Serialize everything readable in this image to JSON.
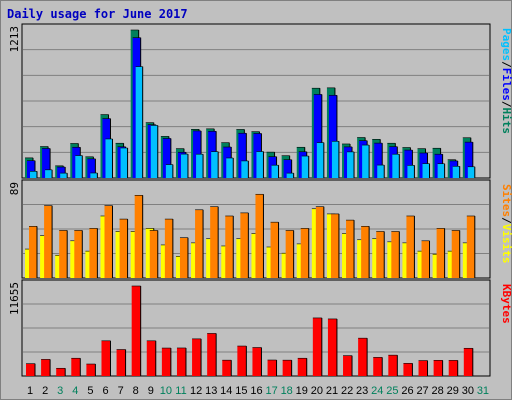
{
  "title": "Daily usage for June 2017",
  "colors": {
    "hits": "#00805c",
    "files": "#0000ff",
    "pages": "#00c0ff",
    "visits": "#ffff00",
    "sites": "#ff8000",
    "kbytes": "#ff0000",
    "weekend_day": "#00805c",
    "weekday": "#000000"
  },
  "chart_data": [
    {
      "type": "bar",
      "name": "hits-files-pages",
      "ylabel_parts": [
        {
          "text": "Pages",
          "color_key": "pages"
        },
        {
          "text": "/",
          "color_key": "weekday"
        },
        {
          "text": "Files",
          "color_key": "files"
        },
        {
          "text": "/",
          "color_key": "weekday"
        },
        {
          "text": "Hits",
          "color_key": "hits"
        }
      ],
      "ymax_label": "1213",
      "ylim": [
        0,
        1213
      ],
      "categories": [
        "1",
        "2",
        "3",
        "4",
        "5",
        "6",
        "7",
        "8",
        "9",
        "10",
        "11",
        "12",
        "13",
        "14",
        "15",
        "16",
        "17",
        "18",
        "19",
        "20",
        "21",
        "22",
        "23",
        "24",
        "25",
        "26",
        "27",
        "28",
        "29",
        "30",
        "31"
      ],
      "weekend_days": [
        "3",
        "4",
        "10",
        "11",
        "17",
        "18",
        "24",
        "25",
        "31"
      ],
      "series": [
        {
          "name": "Hits",
          "color_key": "hits",
          "values": [
            165,
            258,
            100,
            283,
            174,
            520,
            285,
            1213,
            454,
            341,
            241,
            399,
            403,
            290,
            398,
            380,
            212,
            183,
            252,
            736,
            739,
            279,
            332,
            317,
            285,
            250,
            241,
            244,
            150,
            330,
            0
          ]
        },
        {
          "name": "Files",
          "color_key": "files",
          "values": [
            142,
            242,
            90,
            252,
            157,
            487,
            256,
            1150,
            437,
            324,
            211,
            386,
            383,
            254,
            367,
            365,
            175,
            150,
            215,
            685,
            678,
            255,
            306,
            286,
            257,
            229,
            205,
            195,
            140,
            294,
            0
          ]
        },
        {
          "name": "Pages",
          "color_key": "pages",
          "values": [
            55,
            67,
            40,
            184,
            41,
            320,
            246,
            913,
            431,
            110,
            196,
            195,
            216,
            164,
            140,
            217,
            105,
            40,
            180,
            290,
            301,
            214,
            270,
            106,
            195,
            104,
            118,
            117,
            96,
            92,
            0
          ]
        }
      ]
    },
    {
      "type": "bar",
      "name": "visits-sites",
      "ylabel_parts": [
        {
          "text": "Sites",
          "color_key": "sites"
        },
        {
          "text": "/",
          "color_key": "weekday"
        },
        {
          "text": "Visits",
          "color_key": "visits"
        }
      ],
      "ymax_label": "89",
      "ylim": [
        0,
        89
      ],
      "categories": [
        "1",
        "2",
        "3",
        "4",
        "5",
        "6",
        "7",
        "8",
        "9",
        "10",
        "11",
        "12",
        "13",
        "14",
        "15",
        "16",
        "17",
        "18",
        "19",
        "20",
        "21",
        "22",
        "23",
        "24",
        "25",
        "26",
        "27",
        "28",
        "29",
        "30",
        "31"
      ],
      "series": [
        {
          "name": "Visits",
          "color_key": "visits",
          "values": [
            28,
            41,
            22,
            36,
            26,
            60,
            45,
            45,
            48,
            32,
            21,
            34,
            38,
            31,
            38,
            43,
            30,
            24,
            33,
            67,
            62,
            43,
            37,
            38,
            35,
            34,
            26,
            23,
            26,
            34,
            0
          ]
        },
        {
          "name": "Sites",
          "color_key": "sites",
          "values": [
            50,
            70,
            46,
            46,
            48,
            70,
            57,
            80,
            46,
            57,
            39,
            66,
            69,
            60,
            63,
            81,
            54,
            46,
            48,
            69,
            62,
            56,
            50,
            45,
            45,
            60,
            36,
            48,
            46,
            60,
            0
          ]
        }
      ]
    },
    {
      "type": "bar",
      "name": "kbytes",
      "ylabel_parts": [
        {
          "text": "KBytes",
          "color_key": "kbytes"
        }
      ],
      "ymax_label": "11655",
      "ylim": [
        0,
        11655
      ],
      "categories": [
        "1",
        "2",
        "3",
        "4",
        "5",
        "6",
        "7",
        "8",
        "9",
        "10",
        "11",
        "12",
        "13",
        "14",
        "15",
        "16",
        "17",
        "18",
        "19",
        "20",
        "21",
        "22",
        "23",
        "24",
        "25",
        "26",
        "27",
        "28",
        "29",
        "30",
        "31"
      ],
      "series": [
        {
          "name": "KBytes",
          "color_key": "kbytes",
          "values": [
            1600,
            2150,
            1000,
            2300,
            1550,
            4560,
            3430,
            11655,
            4560,
            3620,
            3630,
            4810,
            5510,
            2050,
            3880,
            3690,
            2070,
            2050,
            2300,
            7520,
            7390,
            2640,
            4900,
            2410,
            2700,
            1640,
            2000,
            2030,
            2020,
            3590,
            0
          ]
        }
      ]
    }
  ]
}
